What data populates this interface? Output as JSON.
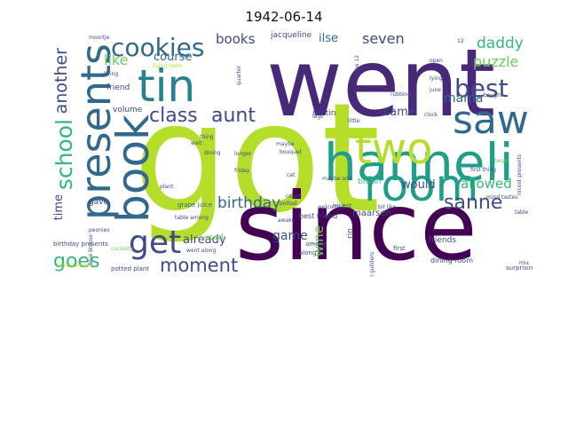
{
  "title": "1942-06-14",
  "colormap": [
    "#440154",
    "#482878",
    "#3e4a89",
    "#31688e",
    "#26828e",
    "#1f9e89",
    "#35b779",
    "#6ece58",
    "#b5de2b",
    "#fde725"
  ],
  "words": [
    {
      "text": "went",
      "weight": 1.0,
      "color": "#482878",
      "orientation": "horizontal"
    },
    {
      "text": "got",
      "weight": 0.98,
      "color": "#b5de2b",
      "orientation": "horizontal"
    },
    {
      "text": "since",
      "weight": 0.9,
      "color": "#440154",
      "orientation": "horizontal"
    },
    {
      "text": "hanneli",
      "weight": 0.62,
      "color": "#1f9e89",
      "orientation": "horizontal"
    },
    {
      "text": "room",
      "weight": 0.56,
      "color": "#1f9e89",
      "orientation": "horizontal"
    },
    {
      "text": "book",
      "weight": 0.55,
      "color": "#31688e",
      "orientation": "vertical"
    },
    {
      "text": "presents",
      "weight": 0.5,
      "color": "#31688e",
      "orientation": "vertical"
    },
    {
      "text": "tin",
      "weight": 0.52,
      "color": "#26828e",
      "orientation": "horizontal"
    },
    {
      "text": "saw",
      "weight": 0.48,
      "color": "#31688e",
      "orientation": "horizontal"
    },
    {
      "text": "two",
      "weight": 0.47,
      "color": "#b5de2b",
      "orientation": "horizontal"
    },
    {
      "text": "get",
      "weight": 0.42,
      "color": "#3e4a89",
      "orientation": "horizontal"
    },
    {
      "text": "school",
      "weight": 0.3,
      "color": "#35b779",
      "orientation": "vertical"
    },
    {
      "text": "cookies",
      "weight": 0.29,
      "color": "#31688e",
      "orientation": "horizontal"
    },
    {
      "text": "best",
      "weight": 0.28,
      "color": "#3e4a89",
      "orientation": "horizontal"
    },
    {
      "text": "class",
      "weight": 0.26,
      "color": "#3e4a89",
      "orientation": "horizontal"
    },
    {
      "text": "aunt",
      "weight": 0.26,
      "color": "#3e4a89",
      "orientation": "horizontal"
    },
    {
      "text": "sanne",
      "weight": 0.26,
      "color": "#3e4a89",
      "orientation": "horizontal"
    },
    {
      "text": "moment",
      "weight": 0.25,
      "color": "#3e4a89",
      "orientation": "horizontal"
    },
    {
      "text": "goes",
      "weight": 0.25,
      "color": "#35b779",
      "orientation": "horizontal"
    },
    {
      "text": "another",
      "weight": 0.22,
      "color": "#3e4a89",
      "orientation": "vertical"
    },
    {
      "text": "birthday",
      "weight": 0.19,
      "color": "#31688e",
      "orientation": "horizontal"
    },
    {
      "text": "puzzle",
      "weight": 0.18,
      "color": "#6ece58",
      "orientation": "horizontal"
    },
    {
      "text": "daddy",
      "weight": 0.18,
      "color": "#35b779",
      "orientation": "horizontal"
    },
    {
      "text": "seven",
      "weight": 0.17,
      "color": "#3e4a89",
      "orientation": "horizontal"
    },
    {
      "text": "mama",
      "weight": 0.16,
      "color": "#31688e",
      "orientation": "horizontal"
    },
    {
      "text": "allowed",
      "weight": 0.16,
      "color": "#35b779",
      "orientation": "horizontal"
    },
    {
      "text": "like",
      "weight": 0.15,
      "color": "#6ece58",
      "orientation": "horizontal"
    },
    {
      "text": "books",
      "weight": 0.15,
      "color": "#3e4a89",
      "orientation": "horizontal"
    },
    {
      "text": "ilse",
      "weight": 0.14,
      "color": "#31688e",
      "orientation": "horizontal"
    },
    {
      "text": "wine",
      "weight": 0.14,
      "color": "#6ece58",
      "orientation": "vertical"
    },
    {
      "text": "game",
      "weight": 0.14,
      "color": "#3e4a89",
      "orientation": "horizontal"
    },
    {
      "text": "already",
      "weight": 0.13,
      "color": "#3e4a89",
      "orientation": "horizontal"
    },
    {
      "text": "would",
      "weight": 0.13,
      "color": "#3e4a89",
      "orientation": "horizontal"
    },
    {
      "text": "came",
      "weight": 0.12,
      "color": "#3e4a89",
      "orientation": "horizontal"
    },
    {
      "text": "course",
      "weight": 0.11,
      "color": "#31688e",
      "orientation": "horizontal"
    },
    {
      "text": "time",
      "weight": 0.11,
      "color": "#3e4a89",
      "orientation": "vertical"
    },
    {
      "text": "cold cream",
      "weight": 0.05,
      "color": "#b5de2b",
      "orientation": "horizontal"
    },
    {
      "text": "jacqueline",
      "weight": 0.08,
      "color": "#3e4a89",
      "orientation": "horizontal"
    },
    {
      "text": "rin tin",
      "weight": 0.08,
      "color": "#3e4a89",
      "orientation": "horizontal"
    },
    {
      "text": "tin tin",
      "weight": 0.08,
      "color": "#35b779",
      "orientation": "horizontal"
    },
    {
      "text": "volume",
      "weight": 0.07,
      "color": "#3e4a89",
      "orientation": "horizontal"
    },
    {
      "text": "friend",
      "weight": 0.07,
      "color": "#3e4a89",
      "orientation": "horizontal"
    },
    {
      "text": "gave",
      "weight": 0.07,
      "color": "#3e4a89",
      "orientation": "horizontal"
    },
    {
      "text": "used",
      "weight": 0.07,
      "color": "#6ece58",
      "orientation": "horizontal"
    },
    {
      "text": "best friend",
      "weight": 0.07,
      "color": "#3e4a89",
      "orientation": "horizontal"
    },
    {
      "text": "maarsen",
      "weight": 0.07,
      "color": "#3e4a89",
      "orientation": "horizontal"
    },
    {
      "text": "friends",
      "weight": 0.07,
      "color": "#3e4a89",
      "orientation": "horizontal"
    },
    {
      "text": "rin",
      "weight": 0.07,
      "color": "#3e4a89",
      "orientation": "vertical"
    },
    {
      "text": "grape juice",
      "weight": 0.05,
      "color": "#31688e",
      "orientation": "horizontal"
    },
    {
      "text": "dining room",
      "weight": 0.05,
      "color": "#3e4a89",
      "orientation": "horizontal"
    },
    {
      "text": "surprising",
      "weight": 0.05,
      "color": "#3e4a89",
      "orientation": "horizontal"
    },
    {
      "text": "birthday presents",
      "weight": 0.05,
      "color": "#3e4a89",
      "orientation": "horizontal"
    },
    {
      "text": "potted plant",
      "weight": 0.05,
      "color": "#3e4a89",
      "orientation": "horizontal"
    },
    {
      "text": "went along",
      "weight": 0.04,
      "color": "#3e4a89",
      "orientation": "horizontal"
    },
    {
      "text": "2.50 guilders",
      "weight": 0.04,
      "color": "#3e4a89",
      "orientation": "vertical"
    },
    {
      "text": "welcomed",
      "weight": 0.04,
      "color": "#3e4a89",
      "orientation": "horizontal"
    },
    {
      "text": "bit like",
      "weight": 0.04,
      "color": "#3e4a89",
      "orientation": "horizontal"
    },
    {
      "text": "maybe one",
      "weight": 0.04,
      "color": "#3e4a89",
      "orientation": "horizontal"
    },
    {
      "text": "nicest",
      "weight": 0.04,
      "color": "#3e4a89",
      "orientation": "horizontal"
    },
    {
      "text": "among",
      "weight": 0.04,
      "color": "#3e4a89",
      "orientation": "horizontal"
    },
    {
      "text": "along",
      "weight": 0.04,
      "color": "#3e4a89",
      "orientation": "horizontal"
    },
    {
      "text": "first",
      "weight": 0.04,
      "color": "#3e4a89",
      "orientation": "horizontal"
    },
    {
      "text": "table among",
      "weight": 0.04,
      "color": "#3e4a89",
      "orientation": "horizontal"
    },
    {
      "text": "table",
      "weight": 0.04,
      "color": "#3e4a89",
      "orientation": "horizontal"
    },
    {
      "text": "mind tastes",
      "weight": 0.04,
      "color": "#3e4a89",
      "orientation": "horizontal"
    },
    {
      "text": "first thing",
      "weight": 0.04,
      "color": "#3e4a89",
      "orientation": "horizontal"
    },
    {
      "text": "living room",
      "weight": 0.04,
      "color": "#b5de2b",
      "orientation": "horizontal"
    },
    {
      "text": "moortje",
      "weight": 0.03,
      "color": "#3e4a89",
      "orientation": "horizontal"
    },
    {
      "text": "living",
      "weight": 0.03,
      "color": "#3e4a89",
      "orientation": "horizontal"
    },
    {
      "text": "open",
      "weight": 0.03,
      "color": "#3e4a89",
      "orientation": "horizontal"
    },
    {
      "text": "lying",
      "weight": 0.03,
      "color": "#3e4a89",
      "orientation": "horizontal"
    },
    {
      "text": "june",
      "weight": 0.03,
      "color": "#3e4a89",
      "orientation": "horizontal"
    },
    {
      "text": "june 12",
      "weight": 0.03,
      "color": "#3e4a89",
      "orientation": "vertical"
    },
    {
      "text": "12",
      "weight": 0.03,
      "color": "#3e4a89",
      "orientation": "horizontal"
    },
    {
      "text": "bought",
      "weight": 0.03,
      "color": "#3e4a89",
      "orientation": "horizontal"
    },
    {
      "text": "clock",
      "weight": 0.03,
      "color": "#3e4a89",
      "orientation": "horizontal"
    },
    {
      "text": "little",
      "weight": 0.03,
      "color": "#3e4a89",
      "orientation": "horizontal"
    },
    {
      "text": "legs",
      "weight": 0.03,
      "color": "#3e4a89",
      "orientation": "horizontal"
    },
    {
      "text": "maybe",
      "weight": 0.03,
      "color": "#3e4a89",
      "orientation": "horizontal"
    },
    {
      "text": "longer",
      "weight": 0.03,
      "color": "#3e4a89",
      "orientation": "horizontal"
    },
    {
      "text": "friday",
      "weight": 0.03,
      "color": "#3e4a89",
      "orientation": "horizontal"
    },
    {
      "text": "bouquet",
      "weight": 0.03,
      "color": "#3e4a89",
      "orientation": "horizontal"
    },
    {
      "text": "cat",
      "weight": 0.03,
      "color": "#3e4a89",
      "orientation": "horizontal"
    },
    {
      "text": "count",
      "weight": 0.03,
      "color": "#3e4a89",
      "orientation": "horizontal"
    },
    {
      "text": "potted",
      "weight": 0.03,
      "color": "#3e4a89",
      "orientation": "horizontal"
    },
    {
      "text": "plant",
      "weight": 0.03,
      "color": "#3e4a89",
      "orientation": "horizontal"
    },
    {
      "text": "awake",
      "weight": 0.03,
      "color": "#3e4a89",
      "orientation": "horizontal"
    },
    {
      "text": "thing",
      "weight": 0.03,
      "color": "#3e4a89",
      "orientation": "horizontal"
    },
    {
      "text": "quarter",
      "weight": 0.03,
      "color": "#3e4a89",
      "orientation": "vertical"
    },
    {
      "text": "wait",
      "weight": 0.03,
      "color": "#3e4a89",
      "orientation": "horizontal"
    },
    {
      "text": "dining",
      "weight": 0.03,
      "color": "#3e4a89",
      "orientation": "horizontal"
    },
    {
      "text": "peonies",
      "weight": 0.03,
      "color": "#3e4a89",
      "orientation": "horizontal"
    },
    {
      "text": "curiosity",
      "weight": 0.03,
      "color": "#6ece58",
      "orientation": "horizontal"
    },
    {
      "text": "blue blouse",
      "weight": 0.03,
      "color": "#3e4a89",
      "orientation": "vertical"
    },
    {
      "text": "nicest presents",
      "weight": 0.03,
      "color": "#3e4a89",
      "orientation": "vertical"
    },
    {
      "text": "begin",
      "weight": 0.03,
      "color": "#6ece58",
      "orientation": "horizontal"
    },
    {
      "text": "rubbing",
      "weight": 0.03,
      "color": "#3e4a89",
      "orientation": "horizontal"
    },
    {
      "text": "mix",
      "weight": 0.03,
      "color": "#3e4a89",
      "orientation": "horizontal"
    }
  ]
}
